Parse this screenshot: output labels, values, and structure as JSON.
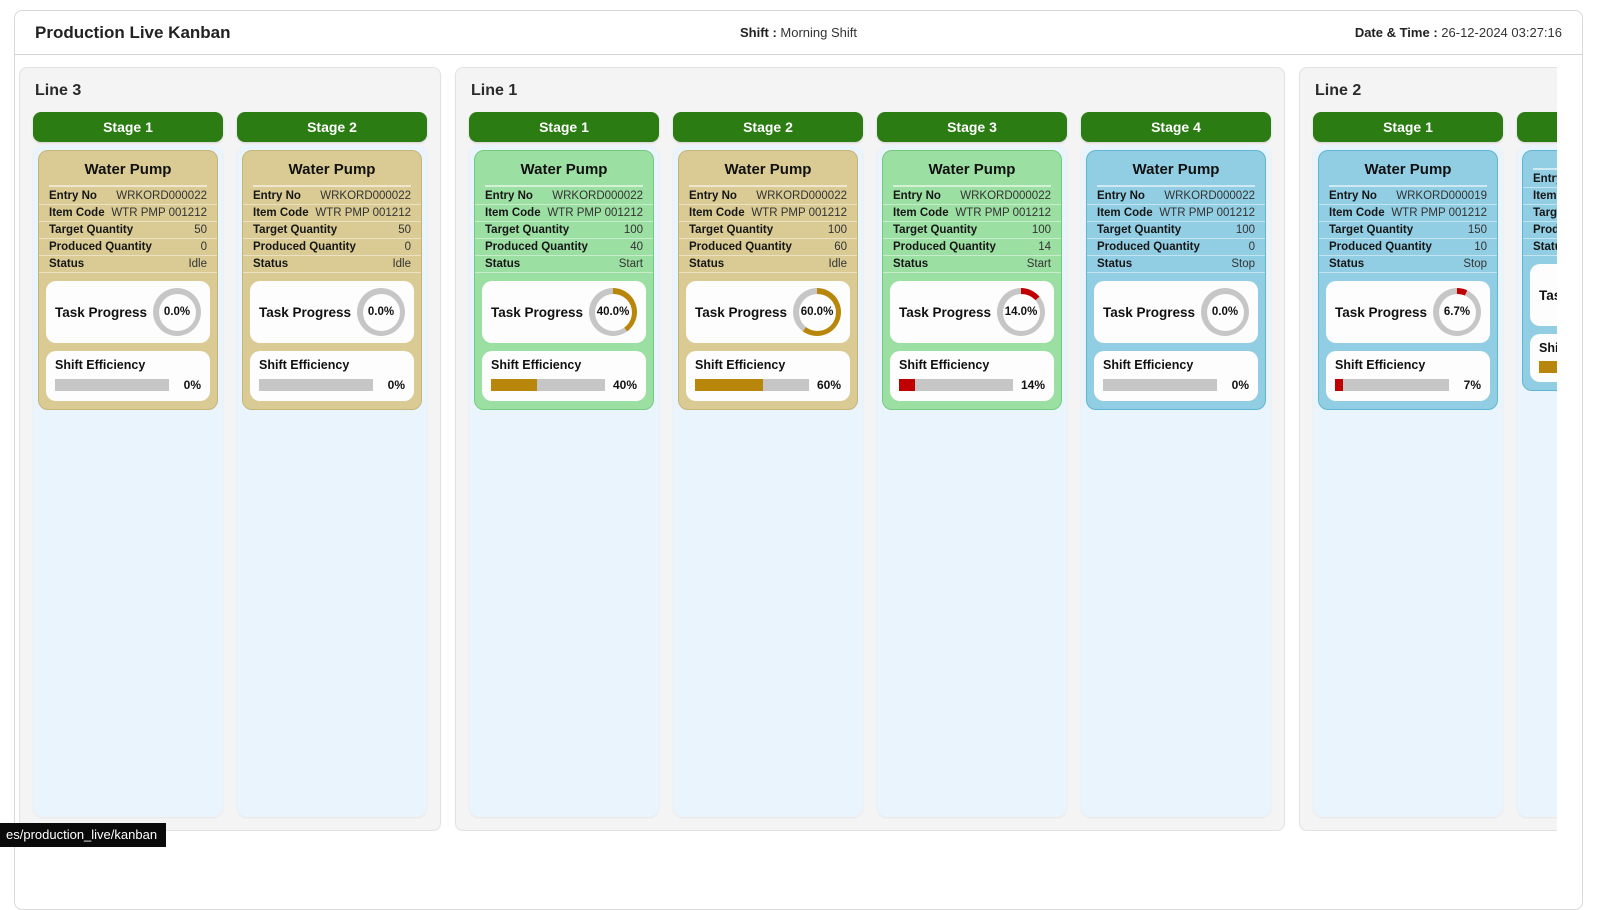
{
  "header": {
    "title": "Production Live Kanban",
    "shift_label": "Shift :",
    "shift_value": "Morning Shift",
    "datetime_label": "Date & Time :",
    "datetime_value": "26-12-2024 03:27:16"
  },
  "status_tooltip": "es/production_live/kanban",
  "field_labels": {
    "entry_no": "Entry No",
    "item_code": "Item Code",
    "target_qty": "Target Quantity",
    "produced_qty": "Produced Quantity",
    "status": "Status",
    "task_progress": "Task Progress",
    "shift_efficiency": "Shift Efficiency"
  },
  "colors": {
    "stage_header_green": "#2b7c12",
    "column_body": "#e9f4fc",
    "gold": "#b8860b",
    "red": "#c00000",
    "track_gray": "#c6c6c6",
    "themes": {
      "khaki": {
        "bg": "#d9cb93",
        "border": "#c3b478"
      },
      "green": {
        "bg": "#9cdfa3",
        "border": "#74cb7f"
      },
      "blue": {
        "bg": "#92cee3",
        "border": "#5fb6d4"
      }
    }
  },
  "lines": [
    {
      "title": "Line 3",
      "stages": [
        {
          "name": "Stage 1",
          "card": {
            "title": "Water Pump",
            "entry_no": "WRKORD000022",
            "item_code": "WTR PMP 001212",
            "target_qty": "50",
            "produced_qty": "0",
            "status": "Idle",
            "theme": "khaki",
            "task_pct": 0,
            "task_text": "0.0%",
            "eff_pct": 0,
            "eff_text": "0%",
            "progress_color": "none"
          }
        },
        {
          "name": "Stage 2",
          "card": {
            "title": "Water Pump",
            "entry_no": "WRKORD000022",
            "item_code": "WTR PMP 001212",
            "target_qty": "50",
            "produced_qty": "0",
            "status": "Idle",
            "theme": "khaki",
            "task_pct": 0,
            "task_text": "0.0%",
            "eff_pct": 0,
            "eff_text": "0%",
            "progress_color": "none"
          }
        }
      ]
    },
    {
      "title": "Line 1",
      "stages": [
        {
          "name": "Stage 1",
          "card": {
            "title": "Water Pump",
            "entry_no": "WRKORD000022",
            "item_code": "WTR PMP 001212",
            "target_qty": "100",
            "produced_qty": "40",
            "status": "Start",
            "theme": "green",
            "task_pct": 40,
            "task_text": "40.0%",
            "eff_pct": 40,
            "eff_text": "40%",
            "progress_color": "gold"
          }
        },
        {
          "name": "Stage 2",
          "card": {
            "title": "Water Pump",
            "entry_no": "WRKORD000022",
            "item_code": "WTR PMP 001212",
            "target_qty": "100",
            "produced_qty": "60",
            "status": "Idle",
            "theme": "khaki",
            "task_pct": 60,
            "task_text": "60.0%",
            "eff_pct": 60,
            "eff_text": "60%",
            "progress_color": "gold"
          }
        },
        {
          "name": "Stage 3",
          "card": {
            "title": "Water Pump",
            "entry_no": "WRKORD000022",
            "item_code": "WTR PMP 001212",
            "target_qty": "100",
            "produced_qty": "14",
            "status": "Start",
            "theme": "green",
            "task_pct": 14,
            "task_text": "14.0%",
            "eff_pct": 14,
            "eff_text": "14%",
            "progress_color": "red"
          }
        },
        {
          "name": "Stage 4",
          "card": {
            "title": "Water Pump",
            "entry_no": "WRKORD000022",
            "item_code": "WTR PMP 001212",
            "target_qty": "100",
            "produced_qty": "0",
            "status": "Stop",
            "theme": "blue",
            "task_pct": 0,
            "task_text": "0.0%",
            "eff_pct": 0,
            "eff_text": "0%",
            "progress_color": "none"
          }
        }
      ]
    },
    {
      "title": "Line 2",
      "stages": [
        {
          "name": "Stage 1",
          "card": {
            "title": "Water Pump",
            "entry_no": "WRKORD000019",
            "item_code": "WTR PMP 001212",
            "target_qty": "150",
            "produced_qty": "10",
            "status": "Stop",
            "theme": "blue",
            "task_pct": 7,
            "task_text": "6.7%",
            "eff_pct": 7,
            "eff_text": "7%",
            "progress_color": "red"
          }
        },
        {
          "name": "",
          "card": {
            "title": "",
            "entry_no": "",
            "item_code": "",
            "target_qty": "",
            "produced_qty": "",
            "status": "",
            "theme": "blue",
            "task_pct": 0,
            "task_text": "",
            "eff_pct": 60,
            "eff_text": "",
            "progress_color": "gold"
          }
        }
      ]
    }
  ]
}
